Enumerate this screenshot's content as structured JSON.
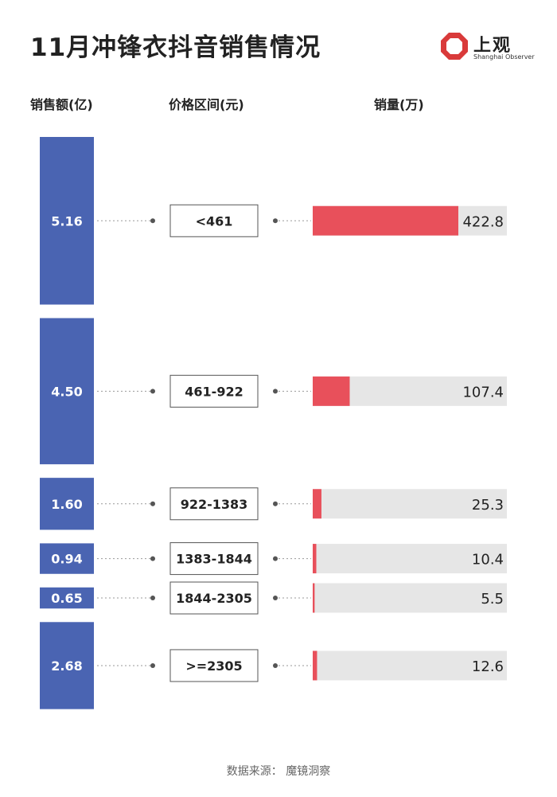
{
  "title": "11月冲锋衣抖音销售情况",
  "logo": {
    "name_cn": "上观",
    "name_en": "Shanghai Observer"
  },
  "headers": {
    "revenue": "销售额(亿)",
    "price": "价格区间(元)",
    "volume": "销量(万)"
  },
  "source": "数据来源： 魔镜洞察",
  "colors": {
    "revenue_bar": "#4a64b2",
    "volume_bar": "#e8505b",
    "track": "#e6e6e6",
    "connector": "#999999",
    "text": "#222222"
  },
  "chart_data": {
    "type": "bar",
    "categories": [
      "<461",
      "461-922",
      "922-1383",
      "1383-1844",
      "1844-2305",
      ">=2305"
    ],
    "series": [
      {
        "name": "销售额(亿)",
        "values": [
          5.16,
          4.5,
          1.6,
          0.94,
          0.65,
          2.68
        ]
      },
      {
        "name": "销量(万)",
        "values": [
          422.8,
          107.4,
          25.3,
          10.4,
          5.5,
          12.6
        ]
      }
    ],
    "revenue_labels": [
      "5.16",
      "4.50",
      "1.60",
      "0.94",
      "0.65",
      "2.68"
    ],
    "volume_labels": [
      "422.8",
      "107.4",
      "25.3",
      "10.4",
      "5.5",
      "12.6"
    ],
    "xlabel": "",
    "ylabel": ""
  }
}
